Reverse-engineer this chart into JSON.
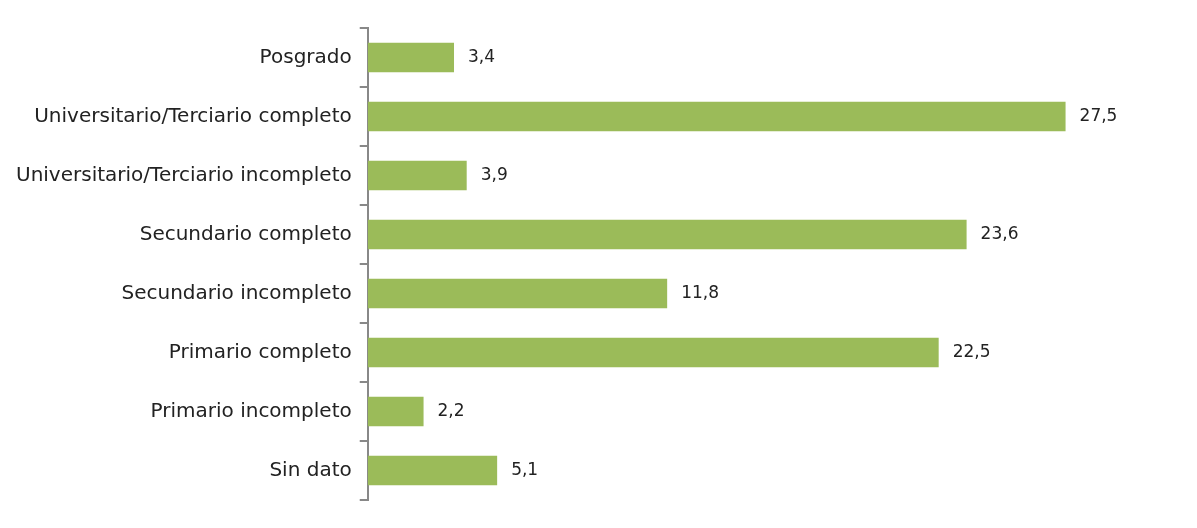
{
  "chart_data": {
    "type": "bar",
    "orientation": "horizontal",
    "categories": [
      "Posgrado",
      "Universitario/Terciario completo",
      "Universitario/Terciario incompleto",
      "Secundario completo",
      "Secundario incompleto",
      "Primario completo",
      "Primario incompleto",
      "Sin dato"
    ],
    "values": [
      3.4,
      27.5,
      3.9,
      23.6,
      11.8,
      22.5,
      2.2,
      5.1
    ],
    "value_labels": [
      "3,4",
      "27,5",
      "3,9",
      "23,6",
      "11,8",
      "22,5",
      "2,2",
      "5,1"
    ],
    "color": "#9bbb59",
    "grid": false,
    "legend": false
  }
}
